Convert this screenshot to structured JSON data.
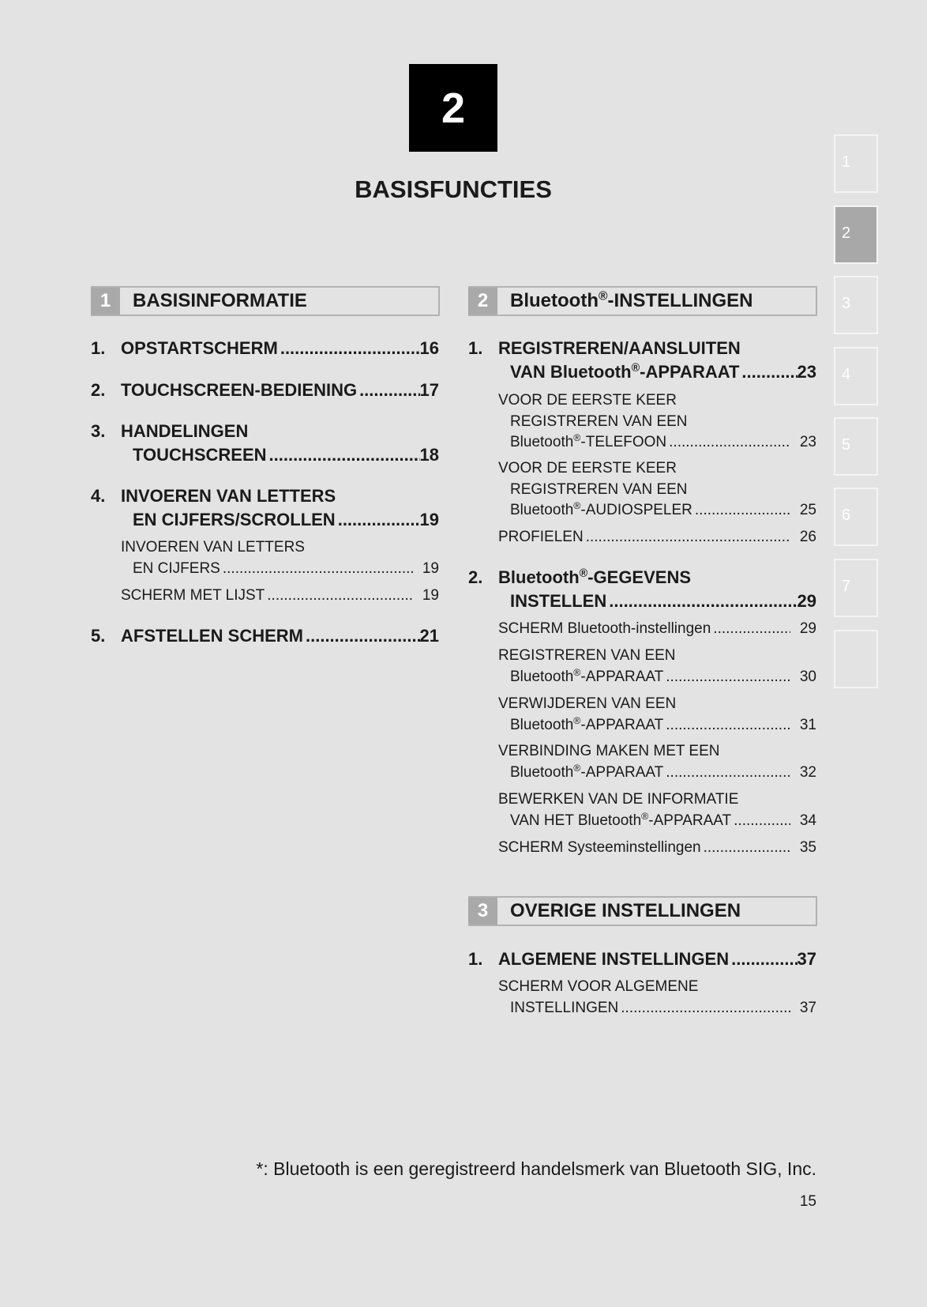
{
  "chapter": {
    "number": "2",
    "title": "BASISFUNCTIES"
  },
  "side_tabs": [
    {
      "label": "1",
      "active": false
    },
    {
      "label": "2",
      "active": true
    },
    {
      "label": "3",
      "active": false
    },
    {
      "label": "4",
      "active": false
    },
    {
      "label": "5",
      "active": false
    },
    {
      "label": "6",
      "active": false
    },
    {
      "label": "7",
      "active": false
    },
    {
      "label": "",
      "active": false
    }
  ],
  "sections": [
    {
      "num": "1",
      "title": "BASISINFORMATIE",
      "entries": [
        {
          "num": "1.",
          "level": "main",
          "lines": [
            "OPSTARTSCHERM"
          ],
          "page": "16"
        },
        {
          "num": "2.",
          "level": "main",
          "lines": [
            "TOUCHSCREEN-BEDIENING"
          ],
          "page": "17"
        },
        {
          "num": "3.",
          "level": "main",
          "lines": [
            "HANDELINGEN",
            "TOUCHSCREEN"
          ],
          "page": "18"
        },
        {
          "num": "4.",
          "level": "main",
          "lines": [
            "INVOEREN VAN LETTERS",
            "EN CIJFERS/SCROLLEN"
          ],
          "page": "19"
        },
        {
          "num": "",
          "level": "sub",
          "lines": [
            "INVOEREN VAN LETTERS",
            "EN CIJFERS"
          ],
          "page": "19"
        },
        {
          "num": "",
          "level": "sub",
          "lines": [
            "SCHERM MET LIJST"
          ],
          "page": "19"
        },
        {
          "num": "5.",
          "level": "main",
          "lines": [
            "AFSTELLEN SCHERM"
          ],
          "page": "21"
        }
      ]
    },
    {
      "num": "2",
      "title": "Bluetooth®-INSTELLINGEN",
      "entries": [
        {
          "num": "1.",
          "level": "main",
          "lines": [
            "REGISTREREN/AANSLUITEN",
            "VAN Bluetooth®-APPARAAT"
          ],
          "page": "23"
        },
        {
          "num": "",
          "level": "sub",
          "lines": [
            "VOOR DE EERSTE KEER",
            "REGISTREREN VAN EEN",
            "Bluetooth®-TELEFOON"
          ],
          "page": "23"
        },
        {
          "num": "",
          "level": "sub",
          "lines": [
            "VOOR DE EERSTE KEER",
            "REGISTREREN VAN EEN",
            "Bluetooth®-AUDIOSPELER"
          ],
          "page": "25"
        },
        {
          "num": "",
          "level": "sub",
          "lines": [
            "PROFIELEN"
          ],
          "page": "26"
        },
        {
          "num": "2.",
          "level": "main",
          "lines": [
            "Bluetooth®-GEGEVENS",
            "INSTELLEN"
          ],
          "page": "29"
        },
        {
          "num": "",
          "level": "sub",
          "lines": [
            "SCHERM Bluetooth-instellingen"
          ],
          "page": "29"
        },
        {
          "num": "",
          "level": "sub",
          "lines": [
            "REGISTREREN VAN EEN",
            "Bluetooth®-APPARAAT"
          ],
          "page": "30"
        },
        {
          "num": "",
          "level": "sub",
          "lines": [
            "VERWIJDEREN VAN EEN",
            "Bluetooth®-APPARAAT"
          ],
          "page": "31"
        },
        {
          "num": "",
          "level": "sub",
          "lines": [
            "VERBINDING MAKEN MET EEN",
            "Bluetooth®-APPARAAT"
          ],
          "page": "32"
        },
        {
          "num": "",
          "level": "sub",
          "lines": [
            "BEWERKEN VAN DE INFORMATIE",
            "VAN HET Bluetooth®-APPARAAT"
          ],
          "page": "34"
        },
        {
          "num": "",
          "level": "sub",
          "lines": [
            "SCHERM Systeeminstellingen"
          ],
          "page": "35"
        }
      ]
    },
    {
      "num": "3",
      "title": "OVERIGE INSTELLINGEN",
      "entries": [
        {
          "num": "1.",
          "level": "main",
          "lines": [
            "ALGEMENE INSTELLINGEN"
          ],
          "page": "37"
        },
        {
          "num": "",
          "level": "sub",
          "lines": [
            "SCHERM VOOR ALGEMENE",
            "INSTELLINGEN"
          ],
          "page": "37"
        }
      ]
    }
  ],
  "footnote": "*: Bluetooth is een geregistreerd handelsmerk van Bluetooth SIG, Inc.",
  "page_number": "15"
}
